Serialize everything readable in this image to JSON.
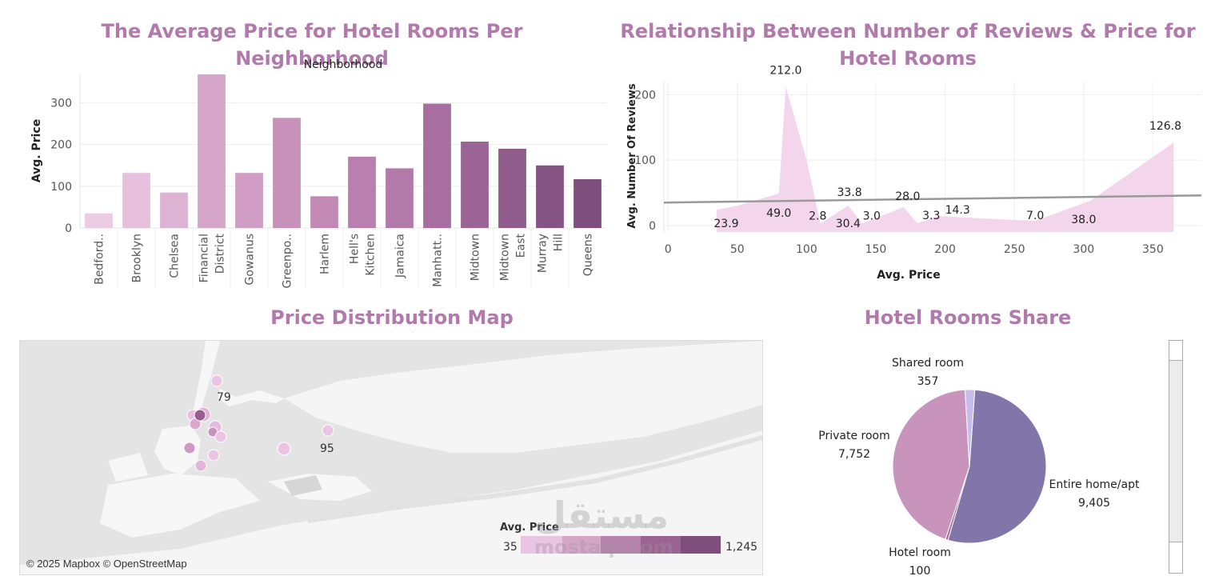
{
  "titles": {
    "bar": "The Average Price for Hotel Rooms Per Neighborhood",
    "area": "Relationship Between Number of Reviews & Price for Hotel Rooms",
    "map": "Price Distribution Map",
    "pie": "Hotel Rooms Share"
  },
  "map": {
    "attribution": "© 2025 Mapbox © OpenStreetMap",
    "labels": [
      "79",
      "95"
    ],
    "legend": {
      "title": "Avg. Price",
      "min": "35",
      "max": "1,245"
    }
  },
  "watermark": {
    "arabic": "مستقل",
    "latin": "mostaqi.com"
  },
  "colors": {
    "title": "#b07aaa",
    "area_fill": "#f3d6ec",
    "trend": "#999999",
    "pie_entire": "#8275aa",
    "pie_private": "#c994bb",
    "pie_shared": "#c7bdea"
  },
  "chart_data": [
    {
      "type": "bar",
      "title": "The Average Price for Hotel Rooms Per Neighborhood",
      "column_header": "Neighborhood",
      "ylabel": "Avg. Price",
      "ylim": [
        0,
        370
      ],
      "yticks": [
        0,
        100,
        200,
        300
      ],
      "grid": true,
      "categories": [
        "Bedford..",
        "Brooklyn",
        "Chelsea",
        "Financial District",
        "Gowanus",
        "Greenpo..",
        "Harlem",
        "Hell's Kitchen",
        "Jamaica",
        "Manhatt..",
        "Midtown",
        "Midtown East",
        "Murray Hill",
        "Queens"
      ],
      "category_lines": [
        [
          "Bedford.."
        ],
        [
          "Brooklyn"
        ],
        [
          "Chelsea"
        ],
        [
          "Financial",
          "District"
        ],
        [
          "Gowanus"
        ],
        [
          "Greenpo.."
        ],
        [
          "Harlem"
        ],
        [
          "Hell's",
          "Kitchen"
        ],
        [
          "Jamaica"
        ],
        [
          "Manhatt.."
        ],
        [
          "Midtown"
        ],
        [
          "Midtown",
          "East"
        ],
        [
          "Murray",
          "Hill"
        ],
        [
          "Queens"
        ]
      ],
      "values": [
        35,
        132,
        85,
        368,
        132,
        264,
        76,
        171,
        143,
        298,
        207,
        190,
        150,
        117
      ],
      "colors": [
        "#eccbe4",
        "#e6c0dc",
        "#ddb3d3",
        "#d6a6c9",
        "#d09ec4",
        "#c891ba",
        "#c189b4",
        "#b97fae",
        "#b27aa8",
        "#a76e9f",
        "#9a6495",
        "#8f5c8c",
        "#855384",
        "#7e4e7c"
      ]
    },
    {
      "type": "area",
      "title": "Relationship Between Number of Reviews & Price for Hotel Rooms",
      "xlabel": "Avg. Price",
      "ylabel": "Avg. Number Of Reviews",
      "xlim": [
        -3,
        385
      ],
      "ylim": [
        -10,
        220
      ],
      "xticks": [
        0,
        50,
        100,
        150,
        200,
        250,
        300,
        350
      ],
      "yticks": [
        0,
        100,
        200
      ],
      "grid": true,
      "points": [
        [
          35,
          23.9
        ],
        [
          50,
          30
        ],
        [
          80,
          49.0
        ],
        [
          85,
          212.0
        ],
        [
          100,
          100
        ],
        [
          110,
          2.8
        ],
        [
          130,
          30.4
        ],
        [
          140,
          3.0
        ],
        [
          170,
          28.0
        ],
        [
          180,
          3.3
        ],
        [
          195,
          14.3
        ],
        [
          235,
          10
        ],
        [
          265,
          7.0
        ],
        [
          305,
          38.0
        ],
        [
          365,
          126.8
        ]
      ],
      "data_labels": [
        {
          "x": 42,
          "y": 23.9,
          "text": "23.9"
        },
        {
          "x": 85,
          "y": 212.0,
          "text": "212.0"
        },
        {
          "x": 80,
          "y": 49.0,
          "text": "49.0"
        },
        {
          "x": 108,
          "y": 2.8,
          "text": "2.8"
        },
        {
          "x": 130,
          "y": 30.4,
          "text": "30.4"
        },
        {
          "x": 131,
          "y": 33.8,
          "text": "33.8"
        },
        {
          "x": 147,
          "y": 3.0,
          "text": "3.0"
        },
        {
          "x": 173,
          "y": 28.0,
          "text": "28.0"
        },
        {
          "x": 190,
          "y": 3.3,
          "text": "3.3"
        },
        {
          "x": 209,
          "y": 14.3,
          "text": "14.3"
        },
        {
          "x": 265,
          "y": 7.0,
          "text": "7.0"
        },
        {
          "x": 300,
          "y": 38.0,
          "text": "38.0"
        },
        {
          "x": 359,
          "y": 126.8,
          "text": "126.8"
        }
      ],
      "trend": {
        "x": [
          -3,
          385
        ],
        "y": [
          35,
          46
        ]
      }
    },
    {
      "type": "pie",
      "title": "Hotel Rooms Share",
      "slices": [
        {
          "name": "Entire home/apt",
          "value": 9405,
          "label": "9,405",
          "color": "#8275aa"
        },
        {
          "name": "Hotel room",
          "value": 100,
          "label": "100",
          "color": "#a6649a"
        },
        {
          "name": "Private room",
          "value": 7752,
          "label": "7,752",
          "color": "#c994bb"
        },
        {
          "name": "Shared room",
          "value": 357,
          "label": "357",
          "color": "#c7bdea"
        }
      ]
    }
  ]
}
